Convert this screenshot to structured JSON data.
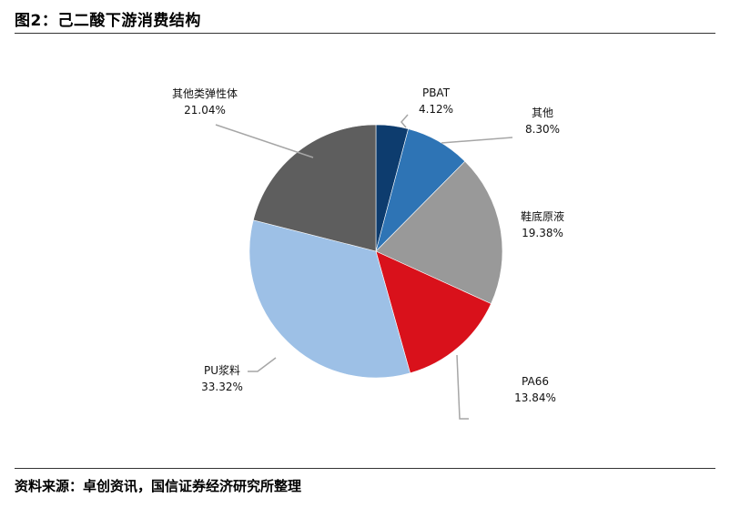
{
  "figure": {
    "title": "图2：己二酸下游消费结构",
    "source": "资料来源：卓创资讯，国信证券经济研究所整理"
  },
  "chart_data": {
    "type": "pie",
    "start_angle_deg": 0,
    "direction": "clockwise",
    "legend": "none",
    "slices": [
      {
        "name": "PBAT",
        "value": 4.12,
        "label": "4.12%",
        "color": "#0d3c6e"
      },
      {
        "name": "其他",
        "value": 8.3,
        "label": "8.30%",
        "color": "#2e74b5"
      },
      {
        "name": "鞋底原液",
        "value": 19.38,
        "label": "19.38%",
        "color": "#999999"
      },
      {
        "name": "PA66",
        "value": 13.84,
        "label": "13.84%",
        "color": "#d9111b"
      },
      {
        "name": "PU浆料",
        "value": 33.32,
        "label": "33.32%",
        "color": "#9dc0e6"
      },
      {
        "name": "其他类弹性体",
        "value": 21.04,
        "label": "21.04%",
        "color": "#5e5e5e"
      }
    ]
  }
}
